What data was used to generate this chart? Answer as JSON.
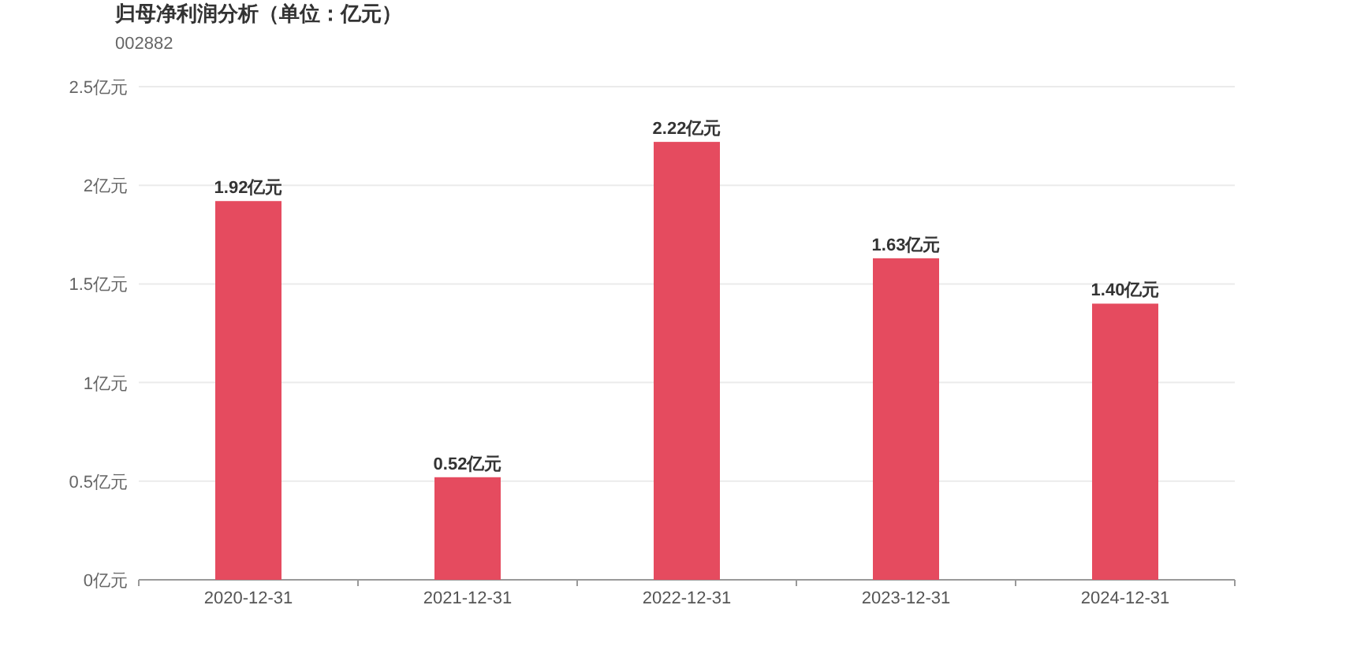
{
  "chart_data": {
    "type": "bar",
    "title": "归母净利润分析（单位：亿元）",
    "subtitle": "002882",
    "categories": [
      "2020-12-31",
      "2021-12-31",
      "2022-12-31",
      "2023-12-31",
      "2024-12-31"
    ],
    "values": [
      1.92,
      0.52,
      2.22,
      1.63,
      1.4
    ],
    "value_labels": [
      "1.92亿元",
      "0.52亿元",
      "2.22亿元",
      "1.63亿元",
      "1.40亿元"
    ],
    "color": "#e54b5f",
    "ylim": [
      0,
      2.5
    ],
    "yticks": [
      {
        "value": 0,
        "label": "0亿元"
      },
      {
        "value": 0.5,
        "label": "0.5亿元"
      },
      {
        "value": 1,
        "label": "1亿元"
      },
      {
        "value": 1.5,
        "label": "1.5亿元"
      },
      {
        "value": 2,
        "label": "2亿元"
      },
      {
        "value": 2.5,
        "label": "2.5亿元"
      }
    ],
    "grid": "y"
  }
}
